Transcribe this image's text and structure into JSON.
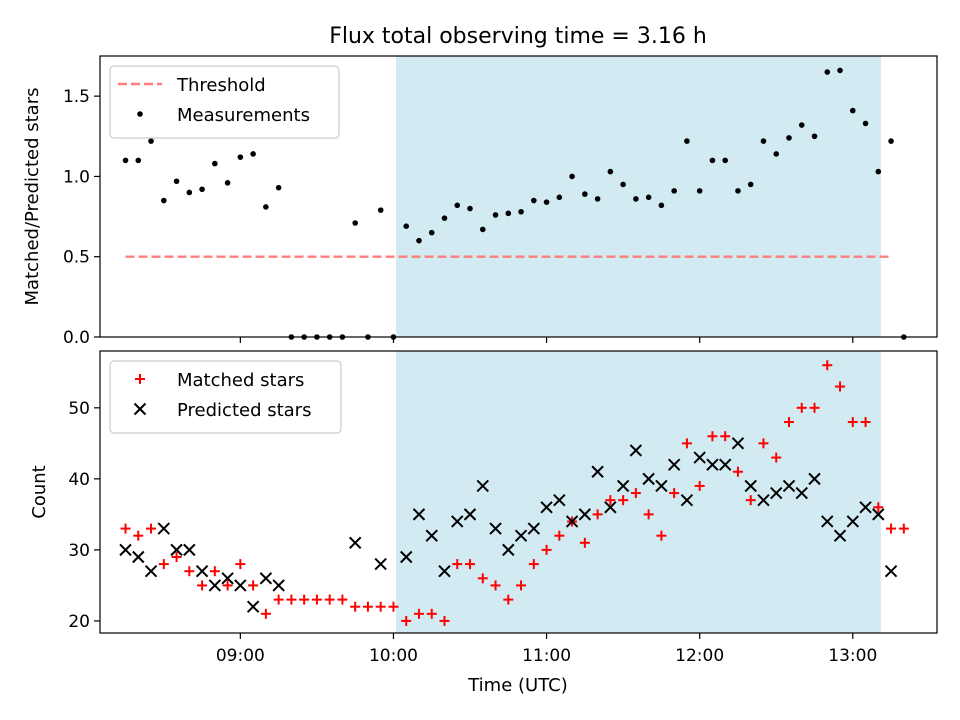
{
  "chart_data": {
    "title": "Flux total observing time = 3.16 h",
    "xlabel": "Time (UTC)",
    "x_tick_labels": [
      "09:00",
      "10:00",
      "11:00",
      "12:00",
      "13:00"
    ],
    "shaded_span": [
      "10:01",
      "13:11"
    ],
    "shade_color": "#add8e6",
    "panels": [
      {
        "type": "scatter",
        "ylabel": "Matched/Predicted stars",
        "ylim": [
          0,
          1.75
        ],
        "y_ticks": [
          "0.0",
          "0.5",
          "1.0",
          "1.5"
        ],
        "legend_position": "upper left",
        "threshold": {
          "name": "Threshold",
          "value": 0.5,
          "x_range": [
            "08:15",
            "13:15"
          ],
          "color": "#ff7f7f"
        },
        "series": [
          {
            "name": "Measurements",
            "color": "#000000",
            "points": [
              [
                "08:15",
                1.1
              ],
              [
                "08:20",
                1.1
              ],
              [
                "08:25",
                1.22
              ],
              [
                "08:30",
                0.85
              ],
              [
                "08:35",
                0.97
              ],
              [
                "08:40",
                0.9
              ],
              [
                "08:45",
                0.92
              ],
              [
                "08:50",
                1.08
              ],
              [
                "08:55",
                0.96
              ],
              [
                "09:00",
                1.12
              ],
              [
                "09:05",
                1.14
              ],
              [
                "09:10",
                0.81
              ],
              [
                "09:15",
                0.93
              ],
              [
                "09:20",
                0.0
              ],
              [
                "09:25",
                0.0
              ],
              [
                "09:30",
                0.0
              ],
              [
                "09:35",
                0.0
              ],
              [
                "09:40",
                0.0
              ],
              [
                "09:45",
                0.71
              ],
              [
                "09:50",
                0.0
              ],
              [
                "09:55",
                0.79
              ],
              [
                "10:00",
                0.0
              ],
              [
                "10:05",
                0.69
              ],
              [
                "10:10",
                0.6
              ],
              [
                "10:15",
                0.65
              ],
              [
                "10:20",
                0.74
              ],
              [
                "10:25",
                0.82
              ],
              [
                "10:30",
                0.8
              ],
              [
                "10:35",
                0.67
              ],
              [
                "10:40",
                0.76
              ],
              [
                "10:45",
                0.77
              ],
              [
                "10:50",
                0.78
              ],
              [
                "10:55",
                0.85
              ],
              [
                "11:00",
                0.84
              ],
              [
                "11:05",
                0.87
              ],
              [
                "11:10",
                1.0
              ],
              [
                "11:15",
                0.89
              ],
              [
                "11:20",
                0.86
              ],
              [
                "11:25",
                1.03
              ],
              [
                "11:30",
                0.95
              ],
              [
                "11:35",
                0.86
              ],
              [
                "11:40",
                0.87
              ],
              [
                "11:45",
                0.82
              ],
              [
                "11:50",
                0.91
              ],
              [
                "11:55",
                1.22
              ],
              [
                "12:00",
                0.91
              ],
              [
                "12:05",
                1.1
              ],
              [
                "12:10",
                1.1
              ],
              [
                "12:15",
                0.91
              ],
              [
                "12:20",
                0.95
              ],
              [
                "12:25",
                1.22
              ],
              [
                "12:30",
                1.14
              ],
              [
                "12:35",
                1.24
              ],
              [
                "12:40",
                1.32
              ],
              [
                "12:45",
                1.25
              ],
              [
                "12:50",
                1.65
              ],
              [
                "12:55",
                1.66
              ],
              [
                "13:00",
                1.41
              ],
              [
                "13:05",
                1.33
              ],
              [
                "13:10",
                1.03
              ],
              [
                "13:15",
                1.22
              ],
              [
                "13:20",
                0.0
              ]
            ]
          }
        ]
      },
      {
        "type": "scatter",
        "ylabel": "Count",
        "ylim": [
          18.3,
          58
        ],
        "y_ticks": [
          "20",
          "30",
          "40",
          "50"
        ],
        "legend_position": "upper left",
        "series": [
          {
            "name": "Matched stars",
            "marker": "+",
            "color": "#ff0000",
            "points": [
              [
                "08:15",
                33
              ],
              [
                "08:20",
                32
              ],
              [
                "08:25",
                33
              ],
              [
                "08:30",
                28
              ],
              [
                "08:35",
                29
              ],
              [
                "08:40",
                27
              ],
              [
                "08:45",
                25
              ],
              [
                "08:50",
                27
              ],
              [
                "08:55",
                25
              ],
              [
                "09:00",
                28
              ],
              [
                "09:05",
                25
              ],
              [
                "09:10",
                21
              ],
              [
                "09:15",
                23
              ],
              [
                "09:20",
                23
              ],
              [
                "09:25",
                23
              ],
              [
                "09:30",
                23
              ],
              [
                "09:35",
                23
              ],
              [
                "09:40",
                23
              ],
              [
                "09:45",
                22
              ],
              [
                "09:50",
                22
              ],
              [
                "09:55",
                22
              ],
              [
                "10:00",
                22
              ],
              [
                "10:05",
                20
              ],
              [
                "10:10",
                21
              ],
              [
                "10:15",
                21
              ],
              [
                "10:20",
                20
              ],
              [
                "10:25",
                28
              ],
              [
                "10:30",
                28
              ],
              [
                "10:35",
                26
              ],
              [
                "10:40",
                25
              ],
              [
                "10:45",
                23
              ],
              [
                "10:50",
                25
              ],
              [
                "10:55",
                28
              ],
              [
                "11:00",
                30
              ],
              [
                "11:05",
                32
              ],
              [
                "11:10",
                34
              ],
              [
                "11:15",
                31
              ],
              [
                "11:20",
                35
              ],
              [
                "11:25",
                37
              ],
              [
                "11:30",
                37
              ],
              [
                "11:35",
                38
              ],
              [
                "11:40",
                35
              ],
              [
                "11:45",
                32
              ],
              [
                "11:50",
                38
              ],
              [
                "11:55",
                45
              ],
              [
                "12:00",
                39
              ],
              [
                "12:05",
                46
              ],
              [
                "12:10",
                46
              ],
              [
                "12:15",
                41
              ],
              [
                "12:20",
                37
              ],
              [
                "12:25",
                45
              ],
              [
                "12:30",
                43
              ],
              [
                "12:35",
                48
              ],
              [
                "12:40",
                50
              ],
              [
                "12:45",
                50
              ],
              [
                "12:50",
                56
              ],
              [
                "12:55",
                53
              ],
              [
                "13:00",
                48
              ],
              [
                "13:05",
                48
              ],
              [
                "13:10",
                36
              ],
              [
                "13:15",
                33
              ],
              [
                "13:20",
                33
              ]
            ]
          },
          {
            "name": "Predicted stars",
            "marker": "x",
            "color": "#000000",
            "points": [
              [
                "08:15",
                30
              ],
              [
                "08:20",
                29
              ],
              [
                "08:25",
                27
              ],
              [
                "08:30",
                33
              ],
              [
                "08:35",
                30
              ],
              [
                "08:40",
                30
              ],
              [
                "08:45",
                27
              ],
              [
                "08:50",
                25
              ],
              [
                "08:55",
                26
              ],
              [
                "09:00",
                25
              ],
              [
                "09:05",
                22
              ],
              [
                "09:10",
                26
              ],
              [
                "09:15",
                25
              ],
              [
                "09:45",
                31
              ],
              [
                "09:55",
                28
              ],
              [
                "10:05",
                29
              ],
              [
                "10:10",
                35
              ],
              [
                "10:15",
                32
              ],
              [
                "10:20",
                27
              ],
              [
                "10:25",
                34
              ],
              [
                "10:30",
                35
              ],
              [
                "10:35",
                39
              ],
              [
                "10:40",
                33
              ],
              [
                "10:45",
                30
              ],
              [
                "10:50",
                32
              ],
              [
                "10:55",
                33
              ],
              [
                "11:00",
                36
              ],
              [
                "11:05",
                37
              ],
              [
                "11:10",
                34
              ],
              [
                "11:15",
                35
              ],
              [
                "11:20",
                41
              ],
              [
                "11:25",
                36
              ],
              [
                "11:30",
                39
              ],
              [
                "11:35",
                44
              ],
              [
                "11:40",
                40
              ],
              [
                "11:45",
                39
              ],
              [
                "11:50",
                42
              ],
              [
                "11:55",
                37
              ],
              [
                "12:00",
                43
              ],
              [
                "12:05",
                42
              ],
              [
                "12:10",
                42
              ],
              [
                "12:15",
                45
              ],
              [
                "12:20",
                39
              ],
              [
                "12:25",
                37
              ],
              [
                "12:30",
                38
              ],
              [
                "12:35",
                39
              ],
              [
                "12:40",
                38
              ],
              [
                "12:45",
                40
              ],
              [
                "12:50",
                34
              ],
              [
                "12:55",
                32
              ],
              [
                "13:00",
                34
              ],
              [
                "13:05",
                36
              ],
              [
                "13:10",
                35
              ],
              [
                "13:15",
                27
              ]
            ]
          }
        ]
      }
    ]
  }
}
